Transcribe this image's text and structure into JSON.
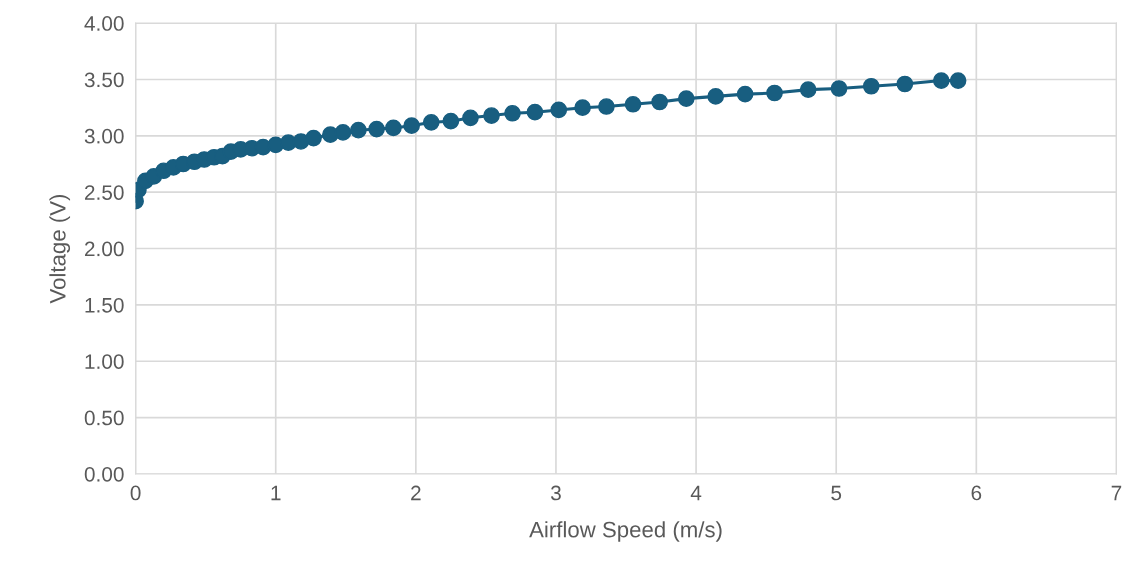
{
  "chart_data": {
    "type": "line",
    "xlabel": "Airflow Speed (m/s)",
    "ylabel": "Voltage (V)",
    "x": [
      0.0,
      0.02,
      0.07,
      0.13,
      0.2,
      0.27,
      0.34,
      0.42,
      0.49,
      0.56,
      0.62,
      0.68,
      0.75,
      0.83,
      0.91,
      1.0,
      1.09,
      1.18,
      1.27,
      1.39,
      1.48,
      1.59,
      1.72,
      1.84,
      1.97,
      2.11,
      2.25,
      2.39,
      2.54,
      2.69,
      2.85,
      3.02,
      3.19,
      3.36,
      3.55,
      3.74,
      3.93,
      4.14,
      4.35,
      4.56,
      4.8,
      5.02,
      5.25,
      5.49,
      5.75,
      5.87
    ],
    "series": [
      {
        "color": "#185e80",
        "values": [
          2.42,
          2.52,
          2.6,
          2.64,
          2.69,
          2.72,
          2.75,
          2.77,
          2.79,
          2.81,
          2.82,
          2.86,
          2.88,
          2.89,
          2.9,
          2.92,
          2.94,
          2.95,
          2.98,
          3.01,
          3.03,
          3.05,
          3.06,
          3.07,
          3.09,
          3.12,
          3.13,
          3.16,
          3.18,
          3.2,
          3.21,
          3.23,
          3.25,
          3.26,
          3.28,
          3.3,
          3.33,
          3.35,
          3.37,
          3.38,
          3.41,
          3.42,
          3.44,
          3.46,
          3.49,
          3.49
        ]
      }
    ],
    "xlim": [
      0,
      7
    ],
    "xticks": [
      0,
      1,
      2,
      3,
      4,
      5,
      6,
      7
    ],
    "ylim": [
      0,
      4
    ],
    "yticks": [
      {
        "value": 0,
        "label": "0.00"
      },
      {
        "value": 0.5,
        "label": "0.50"
      },
      {
        "value": 1,
        "label": "1.00"
      },
      {
        "value": 1.5,
        "label": "1.50"
      },
      {
        "value": 2,
        "label": "2.00"
      },
      {
        "value": 2.5,
        "label": "2.50"
      },
      {
        "value": 3,
        "label": "3.00"
      },
      {
        "value": 3.5,
        "label": "3.50"
      },
      {
        "value": 4,
        "label": "4.00"
      }
    ],
    "grid": true,
    "marker": "circle",
    "line_style": "solid",
    "legend": false
  }
}
